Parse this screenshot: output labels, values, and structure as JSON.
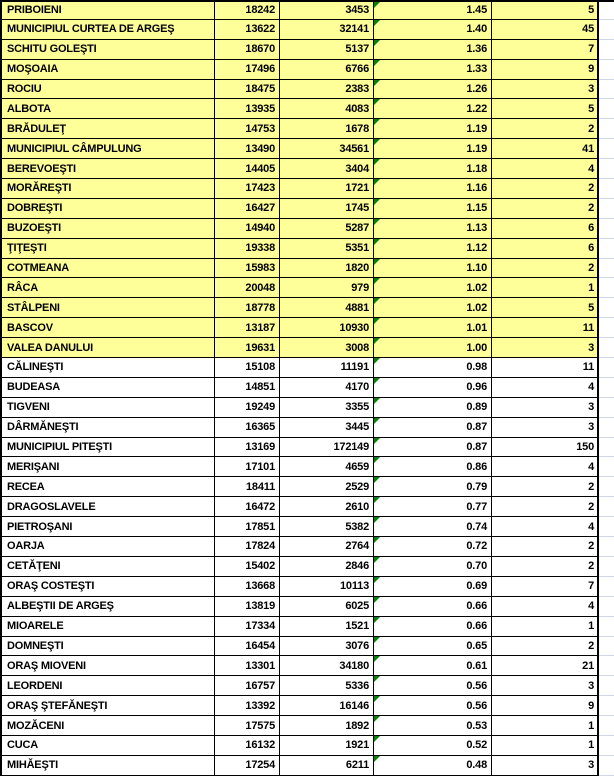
{
  "colors": {
    "highlight_yellow": "#FFFF99",
    "error_indicator_green": "#107C10",
    "gridline_gray": "#D0D7E5",
    "border_black": "#000000",
    "text_black": "#000000"
  },
  "icons": {
    "error_indicator": "error-indicator-icon"
  },
  "highlighted_rows_count": 18,
  "rows": [
    {
      "name": "PRIBOIENI",
      "v1": "18242",
      "v2": "3453",
      "v3": "1.45",
      "v4": "5",
      "highlighted": true
    },
    {
      "name": "MUNICIPIUL CURTEA DE ARGEŞ",
      "v1": "13622",
      "v2": "32141",
      "v3": "1.40",
      "v4": "45",
      "highlighted": true
    },
    {
      "name": "SCHITU GOLEŞTI",
      "v1": "18670",
      "v2": "5137",
      "v3": "1.36",
      "v4": "7",
      "highlighted": true
    },
    {
      "name": "MOŞOAIA",
      "v1": "17496",
      "v2": "6766",
      "v3": "1.33",
      "v4": "9",
      "highlighted": true
    },
    {
      "name": "ROCIU",
      "v1": "18475",
      "v2": "2383",
      "v3": "1.26",
      "v4": "3",
      "highlighted": true
    },
    {
      "name": "ALBOTA",
      "v1": "13935",
      "v2": "4083",
      "v3": "1.22",
      "v4": "5",
      "highlighted": true
    },
    {
      "name": "BRĂDULEŢ",
      "v1": "14753",
      "v2": "1678",
      "v3": "1.19",
      "v4": "2",
      "highlighted": true
    },
    {
      "name": "MUNICIPIUL CÂMPULUNG",
      "v1": "13490",
      "v2": "34561",
      "v3": "1.19",
      "v4": "41",
      "highlighted": true
    },
    {
      "name": "BEREVOEŞTI",
      "v1": "14405",
      "v2": "3404",
      "v3": "1.18",
      "v4": "4",
      "highlighted": true
    },
    {
      "name": "MORĂREŞTI",
      "v1": "17423",
      "v2": "1721",
      "v3": "1.16",
      "v4": "2",
      "highlighted": true
    },
    {
      "name": "DOBREŞTI",
      "v1": "16427",
      "v2": "1745",
      "v3": "1.15",
      "v4": "2",
      "highlighted": true
    },
    {
      "name": "BUZOEŞTI",
      "v1": "14940",
      "v2": "5287",
      "v3": "1.13",
      "v4": "6",
      "highlighted": true
    },
    {
      "name": "ŢIŢEŞTI",
      "v1": "19338",
      "v2": "5351",
      "v3": "1.12",
      "v4": "6",
      "highlighted": true
    },
    {
      "name": "COTMEANA",
      "v1": "15983",
      "v2": "1820",
      "v3": "1.10",
      "v4": "2",
      "highlighted": true
    },
    {
      "name": "RÂCA",
      "v1": "20048",
      "v2": "979",
      "v3": "1.02",
      "v4": "1",
      "highlighted": true
    },
    {
      "name": "STÂLPENI",
      "v1": "18778",
      "v2": "4881",
      "v3": "1.02",
      "v4": "5",
      "highlighted": true
    },
    {
      "name": "BASCOV",
      "v1": "13187",
      "v2": "10930",
      "v3": "1.01",
      "v4": "11",
      "highlighted": true
    },
    {
      "name": "VALEA DANULUI",
      "v1": "19631",
      "v2": "3008",
      "v3": "1.00",
      "v4": "3",
      "highlighted": true
    },
    {
      "name": "CĂLINEŞTI",
      "v1": "15108",
      "v2": "11191",
      "v3": "0.98",
      "v4": "11",
      "highlighted": false
    },
    {
      "name": "BUDEASA",
      "v1": "14851",
      "v2": "4170",
      "v3": "0.96",
      "v4": "4",
      "highlighted": false
    },
    {
      "name": "TIGVENI",
      "v1": "19249",
      "v2": "3355",
      "v3": "0.89",
      "v4": "3",
      "highlighted": false
    },
    {
      "name": "DÂRMĂNEŞTI",
      "v1": "16365",
      "v2": "3445",
      "v3": "0.87",
      "v4": "3",
      "highlighted": false
    },
    {
      "name": "MUNICIPIUL PITEŞTI",
      "v1": "13169",
      "v2": "172149",
      "v3": "0.87",
      "v4": "150",
      "highlighted": false
    },
    {
      "name": "MERIŞANI",
      "v1": "17101",
      "v2": "4659",
      "v3": "0.86",
      "v4": "4",
      "highlighted": false
    },
    {
      "name": "RECEA",
      "v1": "18411",
      "v2": "2529",
      "v3": "0.79",
      "v4": "2",
      "highlighted": false
    },
    {
      "name": "DRAGOSLAVELE",
      "v1": "16472",
      "v2": "2610",
      "v3": "0.77",
      "v4": "2",
      "highlighted": false
    },
    {
      "name": "PIETROŞANI",
      "v1": "17851",
      "v2": "5382",
      "v3": "0.74",
      "v4": "4",
      "highlighted": false
    },
    {
      "name": "OARJA",
      "v1": "17824",
      "v2": "2764",
      "v3": "0.72",
      "v4": "2",
      "highlighted": false
    },
    {
      "name": "CETĂŢENI",
      "v1": "15402",
      "v2": "2846",
      "v3": "0.70",
      "v4": "2",
      "highlighted": false
    },
    {
      "name": "ORAŞ COSTEŞTI",
      "v1": "13668",
      "v2": "10113",
      "v3": "0.69",
      "v4": "7",
      "highlighted": false
    },
    {
      "name": "ALBEŞTII DE ARGEŞ",
      "v1": "13819",
      "v2": "6025",
      "v3": "0.66",
      "v4": "4",
      "highlighted": false
    },
    {
      "name": "MIOARELE",
      "v1": "17334",
      "v2": "1521",
      "v3": "0.66",
      "v4": "1",
      "highlighted": false
    },
    {
      "name": "DOMNEŞTI",
      "v1": "16454",
      "v2": "3076",
      "v3": "0.65",
      "v4": "2",
      "highlighted": false
    },
    {
      "name": "ORAŞ MIOVENI",
      "v1": "13301",
      "v2": "34180",
      "v3": "0.61",
      "v4": "21",
      "highlighted": false
    },
    {
      "name": "LEORDENI",
      "v1": "16757",
      "v2": "5336",
      "v3": "0.56",
      "v4": "3",
      "highlighted": false
    },
    {
      "name": "ORAŞ ŞTEFĂNEŞTI",
      "v1": "13392",
      "v2": "16146",
      "v3": "0.56",
      "v4": "9",
      "highlighted": false
    },
    {
      "name": "MOZĂCENI",
      "v1": "17575",
      "v2": "1892",
      "v3": "0.53",
      "v4": "1",
      "highlighted": false
    },
    {
      "name": "CUCA",
      "v1": "16132",
      "v2": "1921",
      "v3": "0.52",
      "v4": "1",
      "highlighted": false
    },
    {
      "name": "MIHĂEŞTI",
      "v1": "17254",
      "v2": "6211",
      "v3": "0.48",
      "v4": "3",
      "highlighted": false
    }
  ]
}
